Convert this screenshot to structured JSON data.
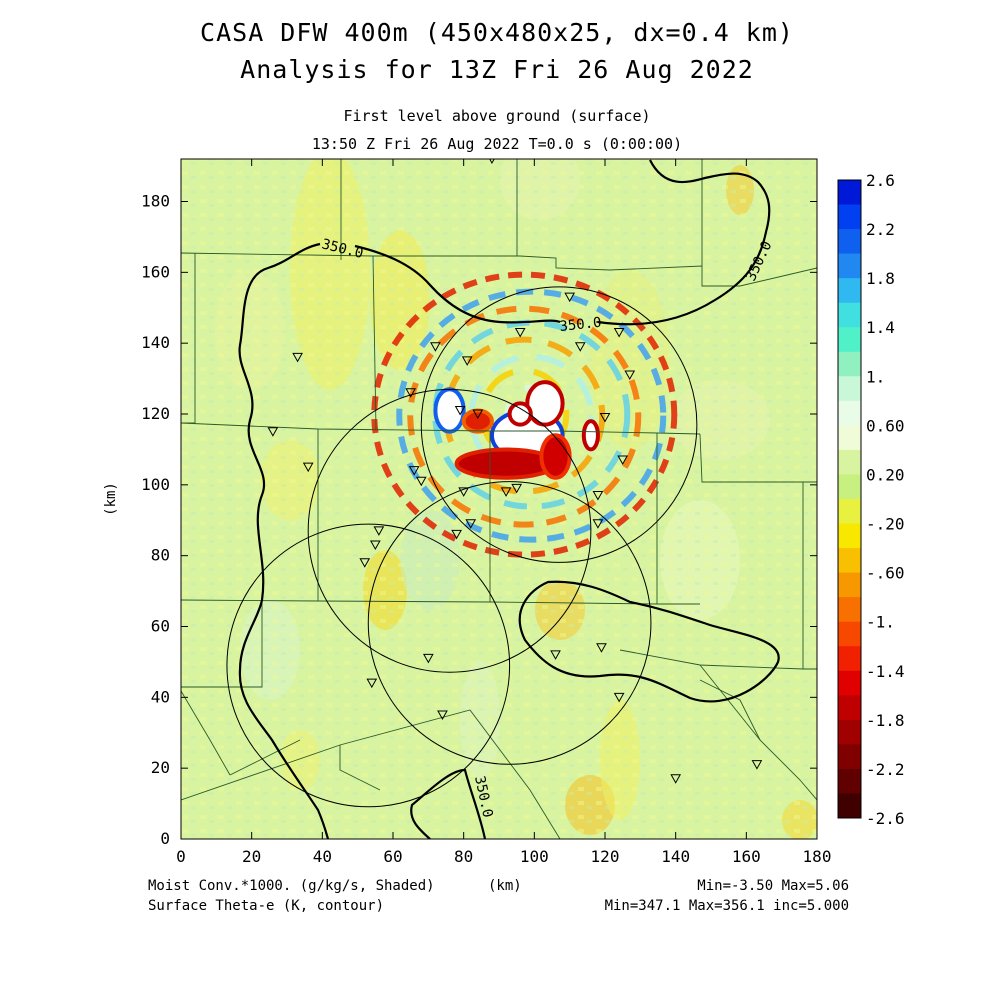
{
  "chart_data": {
    "type": "heatmap",
    "title_line1": "CASA DFW 400m (450x480x25, dx=0.4 km)",
    "title_line2": "Analysis for 13Z Fri 26 Aug 2022",
    "subtitle_line1": "First level above ground (surface)",
    "subtitle_line2": "13:50 Z Fri 26 Aug 2022   T=0.0 s (0:00:00)",
    "xlabel": "(km)",
    "ylabel": "(km)",
    "xlim": [
      0,
      180
    ],
    "ylim": [
      0,
      192
    ],
    "x_ticks": [
      "0",
      "20",
      "40",
      "60",
      "80",
      "100",
      "120",
      "140",
      "160",
      "180"
    ],
    "y_ticks": [
      "0",
      "20",
      "40",
      "60",
      "80",
      "100",
      "120",
      "140",
      "160",
      "180"
    ],
    "colorbar_labels": [
      "2.6",
      "2.2",
      "1.8",
      "1.4",
      "1.",
      "0.60",
      "0.20",
      "-.20",
      "-.60",
      "-1.",
      "-1.4",
      "-1.8",
      "-2.2",
      "-2.6"
    ],
    "colorbar_colors": [
      "#0018d8",
      "#0040f0",
      "#1060f0",
      "#2088f0",
      "#30b8f0",
      "#40e0e0",
      "#50f0c8",
      "#90f0c0",
      "#c8f8d8",
      "#e8fce8",
      "#f0fcd8",
      "#d8f4a0",
      "#c8f080",
      "#e8f040",
      "#f8e800",
      "#f8c000",
      "#f89800",
      "#f87000",
      "#f84800",
      "#f02000",
      "#e00000",
      "#c00000",
      "#a00000",
      "#800000",
      "#600000",
      "#400000"
    ],
    "contour_label": "350.0",
    "contour_level": 350.0,
    "radar_circles": [
      {
        "cx": 107,
        "cy": 117,
        "r": 39
      },
      {
        "cx": 76,
        "cy": 87,
        "r": 40
      },
      {
        "cx": 93,
        "cy": 61,
        "r": 40
      },
      {
        "cx": 53,
        "cy": 49,
        "r": 40
      }
    ],
    "stations": [
      [
        88,
        192
      ],
      [
        110,
        153
      ],
      [
        96,
        143
      ],
      [
        124,
        143
      ],
      [
        113,
        139
      ],
      [
        72,
        139
      ],
      [
        33,
        136
      ],
      [
        81,
        135
      ],
      [
        127,
        131
      ],
      [
        65,
        126
      ],
      [
        120,
        119
      ],
      [
        79,
        121
      ],
      [
        84,
        120
      ],
      [
        26,
        115
      ],
      [
        125,
        107
      ],
      [
        36,
        105
      ],
      [
        66,
        104
      ],
      [
        68,
        101
      ],
      [
        80,
        98
      ],
      [
        92,
        98
      ],
      [
        95,
        99
      ],
      [
        118,
        97
      ],
      [
        82,
        89
      ],
      [
        118,
        89
      ],
      [
        56,
        87
      ],
      [
        55,
        83
      ],
      [
        52,
        78
      ],
      [
        78,
        86
      ],
      [
        70,
        51
      ],
      [
        106,
        52
      ],
      [
        119,
        54
      ],
      [
        54,
        44
      ],
      [
        124,
        40
      ],
      [
        74,
        35
      ],
      [
        140,
        17
      ],
      [
        163,
        21
      ]
    ],
    "field_label_left": "Moist Conv.*1000. (g/kg/s, Shaded)",
    "field_units_mid": "(km)",
    "field_range": "Min=-3.50 Max=5.06",
    "contour_field_label": "Surface Theta-e (K, contour)",
    "contour_range": "Min=347.1 Max=356.1 inc=5.000"
  }
}
